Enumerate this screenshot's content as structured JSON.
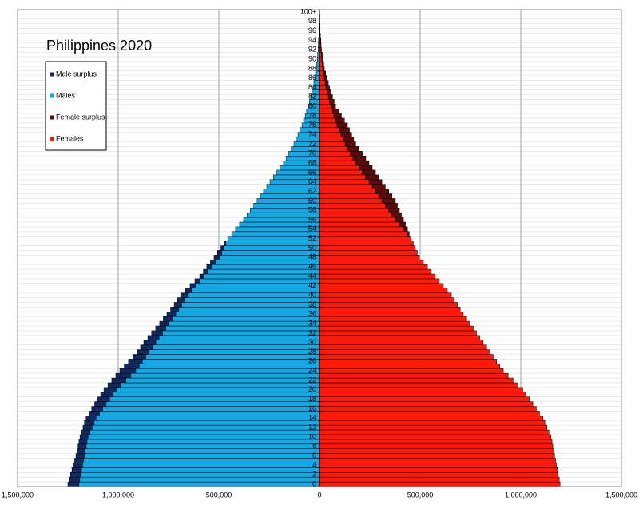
{
  "chart_data": {
    "type": "pyramid",
    "title": "Philippines 2020",
    "categories": [
      "0",
      null,
      "2",
      null,
      "4",
      null,
      "6",
      null,
      "8",
      null,
      "10",
      null,
      "12",
      null,
      "14",
      null,
      "16",
      null,
      "18",
      null,
      "20",
      null,
      "22",
      null,
      "24",
      null,
      "26",
      null,
      "28",
      null,
      "30",
      null,
      "32",
      null,
      "34",
      null,
      "36",
      null,
      "38",
      null,
      "40",
      null,
      "42",
      null,
      "44",
      null,
      "46",
      null,
      "48",
      null,
      "50",
      null,
      "52",
      null,
      "54",
      null,
      "56",
      null,
      "58",
      null,
      "60",
      null,
      "62",
      null,
      "64",
      null,
      "66",
      null,
      "68",
      null,
      "70",
      null,
      "72",
      null,
      "74",
      null,
      "76",
      null,
      "78",
      null,
      "80",
      null,
      "82",
      null,
      "84",
      null,
      "86",
      null,
      "88",
      null,
      "90",
      null,
      "92",
      null,
      "94",
      null,
      "96",
      null,
      "98",
      null,
      "100+"
    ],
    "series": [
      {
        "name": "Male surplus",
        "color": "#12275c",
        "values": [
          -55000,
          -52000,
          -51000,
          -48000,
          -46000,
          -44000,
          -42000,
          -41000,
          -41000,
          -40000,
          -40000,
          -43000,
          -45000,
          -48000,
          -50000,
          -53000,
          -55000,
          -57000,
          -60000,
          -60000,
          -61000,
          -65000,
          -70000,
          -75000,
          -79000,
          -74000,
          -69000,
          -64000,
          -59000,
          -59000,
          -60000,
          -56000,
          -54000,
          -50000,
          -47000,
          -45000,
          -44000,
          -41000,
          -37000,
          -36000,
          -35000,
          -31000,
          -28000,
          -24000,
          -20000,
          -22000,
          -24000,
          -26000,
          -28000,
          -21000,
          -14000,
          -7000,
          0,
          0,
          0,
          0,
          0,
          0,
          0,
          0,
          0,
          0,
          0,
          0,
          0,
          0,
          0,
          0,
          0,
          0,
          0,
          0,
          0,
          0,
          0,
          0,
          0,
          0,
          0,
          0,
          0,
          0,
          0,
          0,
          0,
          0,
          0,
          0,
          0,
          0,
          0,
          0,
          0,
          0,
          0,
          0,
          0,
          0,
          0,
          0,
          0
        ]
      },
      {
        "name": "Males",
        "color": "#17a8e3",
        "values": [
          -1195000,
          -1191000,
          -1186000,
          -1182000,
          -1177000,
          -1173000,
          -1168000,
          -1164000,
          -1159000,
          -1155000,
          -1150000,
          -1140000,
          -1130000,
          -1120000,
          -1110000,
          -1093000,
          -1077000,
          -1060000,
          -1043000,
          -1027000,
          -1010000,
          -986000,
          -962000,
          -937000,
          -913000,
          -896000,
          -880000,
          -863000,
          -846000,
          -830000,
          -813000,
          -797000,
          -780000,
          -764000,
          -747000,
          -731000,
          -714000,
          -699000,
          -685000,
          -670000,
          -655000,
          -635000,
          -615000,
          -595000,
          -575000,
          -555000,
          -536000,
          -516000,
          -496000,
          -486000,
          -476000,
          -466000,
          -456000,
          -436000,
          -417000,
          -397000,
          -377000,
          -360000,
          -344000,
          -327000,
          -310000,
          -294000,
          -278000,
          -262000,
          -246000,
          -229000,
          -212000,
          -196000,
          -179000,
          -166000,
          -153000,
          -140000,
          -127000,
          -117000,
          -107000,
          -97000,
          -87000,
          -79000,
          -71000,
          -64000,
          -56000,
          -50000,
          -44000,
          -38000,
          -32000,
          -28000,
          -24000,
          -20000,
          -16000,
          -14000,
          -11000,
          -9000,
          -7000,
          -6000,
          -5000,
          -3000,
          -2000,
          -2000,
          -1000,
          -1000,
          -1000
        ]
      },
      {
        "name": "Female surplus",
        "color": "#5a0b0b",
        "values": [
          0,
          0,
          0,
          0,
          0,
          0,
          0,
          0,
          0,
          0,
          0,
          0,
          0,
          0,
          0,
          0,
          0,
          0,
          0,
          0,
          0,
          0,
          0,
          0,
          0,
          0,
          0,
          0,
          0,
          0,
          0,
          0,
          0,
          0,
          0,
          0,
          0,
          0,
          0,
          0,
          0,
          0,
          0,
          0,
          0,
          0,
          0,
          0,
          0,
          0,
          0,
          0,
          0,
          10000,
          20000,
          30000,
          40000,
          47000,
          53000,
          60000,
          67000,
          66000,
          66000,
          65000,
          64000,
          65000,
          66000,
          66000,
          67000,
          64000,
          60000,
          57000,
          53000,
          53000,
          53000,
          52000,
          52000,
          45000,
          38000,
          31000,
          24000,
          23000,
          21000,
          20000,
          18000,
          16000,
          13000,
          11000,
          8000,
          7000,
          6000,
          5000,
          3000,
          2000,
          2000,
          2000,
          1000,
          1000,
          1000,
          1000,
          0
        ]
      },
      {
        "name": "Females",
        "color": "#ff1a0a",
        "values": [
          1195000,
          1191000,
          1186000,
          1182000,
          1177000,
          1173000,
          1168000,
          1164000,
          1159000,
          1155000,
          1150000,
          1140000,
          1130000,
          1120000,
          1110000,
          1093000,
          1077000,
          1060000,
          1043000,
          1027000,
          1010000,
          986000,
          962000,
          937000,
          913000,
          896000,
          880000,
          863000,
          846000,
          830000,
          813000,
          797000,
          780000,
          764000,
          747000,
          731000,
          714000,
          699000,
          685000,
          670000,
          655000,
          635000,
          615000,
          595000,
          575000,
          555000,
          536000,
          516000,
          496000,
          486000,
          476000,
          466000,
          456000,
          436000,
          417000,
          397000,
          377000,
          360000,
          344000,
          327000,
          310000,
          294000,
          278000,
          262000,
          246000,
          229000,
          212000,
          196000,
          179000,
          166000,
          153000,
          140000,
          127000,
          117000,
          107000,
          97000,
          87000,
          79000,
          71000,
          64000,
          56000,
          50000,
          44000,
          38000,
          32000,
          28000,
          24000,
          20000,
          16000,
          14000,
          11000,
          9000,
          7000,
          6000,
          5000,
          3000,
          2000,
          2000,
          1000,
          1000,
          1000
        ]
      }
    ],
    "xlim": [
      -1500000,
      1500000
    ],
    "xticks": [
      {
        "value": -1500000,
        "label": "1,500,000"
      },
      {
        "value": -1000000,
        "label": "1,000,000"
      },
      {
        "value": -500000,
        "label": "500,000"
      },
      0,
      {
        "value": 500000,
        "label": "500,000"
      },
      {
        "value": 1000000,
        "label": "1,000,000"
      },
      {
        "value": 1500000,
        "label": "1,500,000"
      }
    ],
    "grid": true
  }
}
